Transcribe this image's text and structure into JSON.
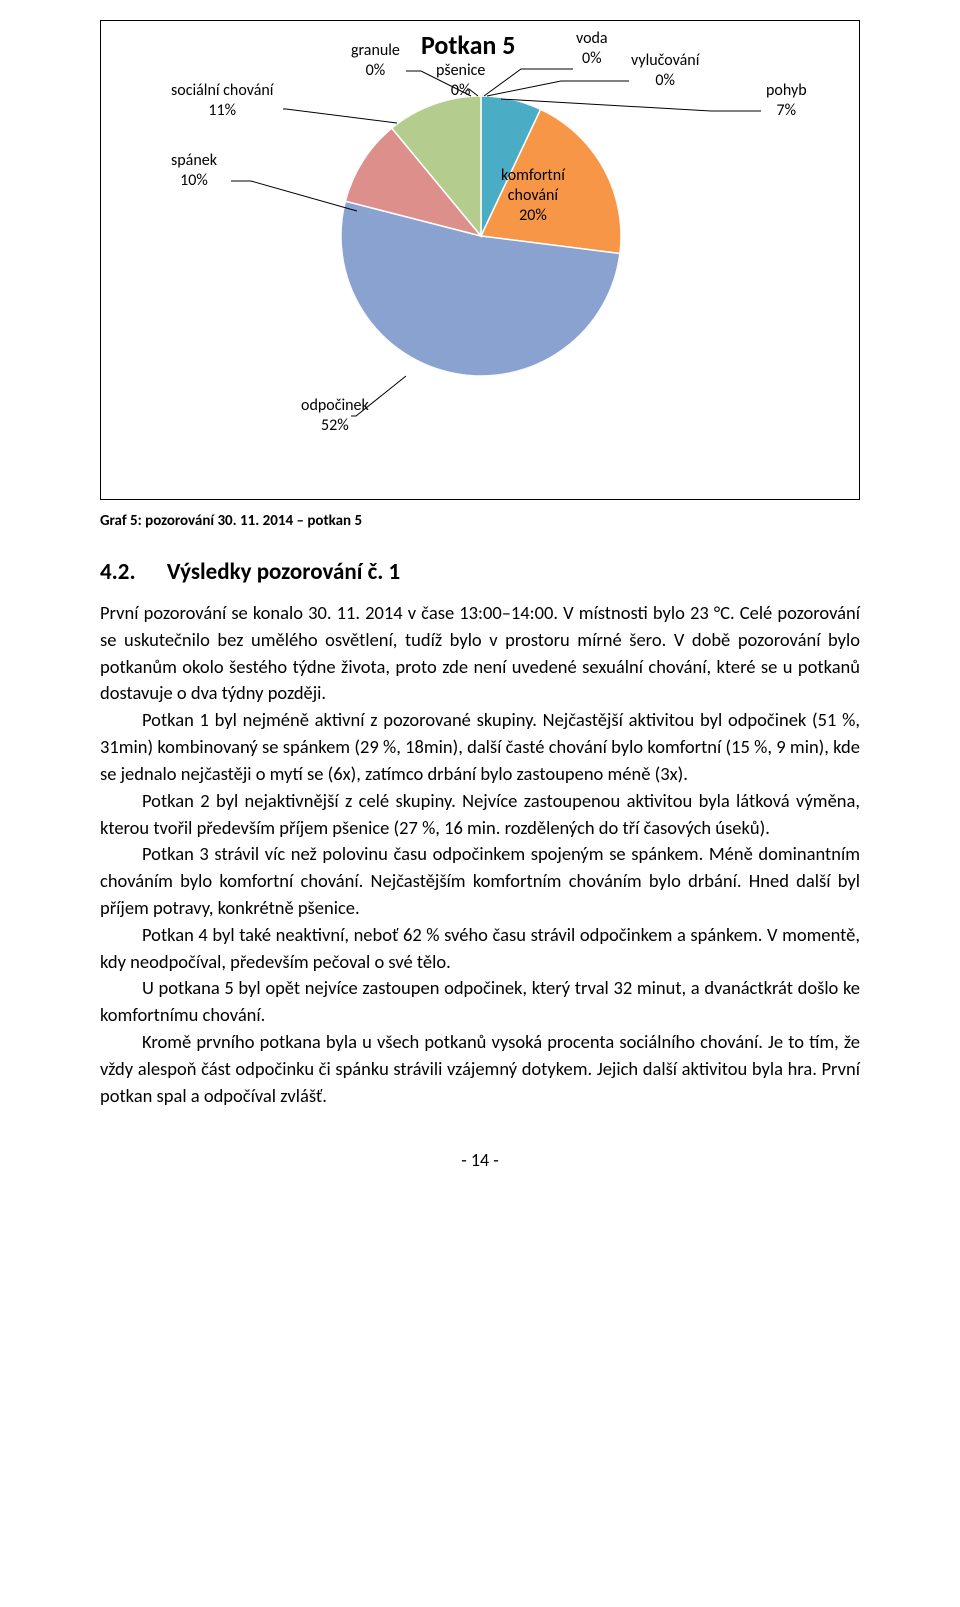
{
  "chart": {
    "title": "Potkan 5",
    "type": "pie",
    "background_color": "#ffffff",
    "border_color": "#000000",
    "slices": [
      {
        "label": "voda",
        "value": 0,
        "percent_text": "0%",
        "color": "#4f81bd"
      },
      {
        "label": "vylučování",
        "value": 0,
        "percent_text": "0%",
        "color": "#c0504d"
      },
      {
        "label": "pohyb",
        "value": 7,
        "percent_text": "7%",
        "color": "#4bacc6"
      },
      {
        "label": "komfortní chování",
        "value": 20,
        "percent_text": "20%",
        "color": "#f79646"
      },
      {
        "label": "odpočinek",
        "value": 52,
        "percent_text": "52%",
        "color": "#8aa2d0"
      },
      {
        "label": "spánek",
        "value": 10,
        "percent_text": "10%",
        "color": "#dd8f8c"
      },
      {
        "label": "sociální chování",
        "value": 11,
        "percent_text": "11%",
        "color": "#b5cc8f"
      },
      {
        "label": "granule",
        "value": 0,
        "percent_text": "0%",
        "color": "#ae9cc8"
      },
      {
        "label": "pšenice",
        "value": 0,
        "percent_text": "0%",
        "color": "#93cddd"
      }
    ],
    "label_fontsize": 16,
    "title_fontsize": 26
  },
  "caption": "Graf  5: pozorování 30. 11. 2014 – potkan 5",
  "heading_num": "4.2.",
  "heading_text": "Výsledky pozorování č. 1",
  "paragraphs": [
    "První pozorování se konalo 30. 11. 2014 v čase 13:00–14:00. V místnosti bylo 23 °C. Celé pozorování se uskutečnilo bez umělého osvětlení, tudíž bylo v prostoru mírné šero. V době pozorování bylo potkanům okolo šestého týdne života, proto zde není uvedené sexuální chování, které se u potkanů dostavuje o dva týdny později.",
    "Potkan 1 byl nejméně aktivní z pozorované skupiny. Nejčastější aktivitou byl odpočinek (51 %, 31min) kombinovaný se spánkem (29 %, 18min), další časté chování bylo komfortní (15 %, 9 min), kde se jednalo nejčastěji o mytí se (6x), zatímco drbání bylo zastoupeno méně (3x).",
    "Potkan 2 byl nejaktivnější z celé skupiny. Nejvíce zastoupenou aktivitou byla látková výměna, kterou tvořil především příjem pšenice (27 %, 16 min. rozdělených do tří časových úseků).",
    "Potkan 3 strávil víc než polovinu času odpočinkem spojeným se spánkem. Méně dominantním chováním bylo komfortní chování. Nejčastějším komfortním chováním bylo drbání. Hned další byl příjem potravy, konkrétně pšenice.",
    "Potkan 4 byl také neaktivní, neboť 62 % svého času strávil odpočinkem a spánkem. V momentě, kdy neodpočíval, především pečoval o své tělo.",
    "U potkana 5 byl opět nejvíce zastoupen odpočinek, který trval 32 minut, a dvanáctkrát došlo ke komfortnímu chování.",
    "Kromě prvního potkana byla u všech potkanů vysoká procenta sociálního chování. Je to tím, že vždy alespoň část odpočinku či spánku strávili vzájemný dotykem. Jejich další aktivitou byla hra. První potkan spal a odpočíval zvlášť."
  ],
  "page_number": "- 14 -"
}
